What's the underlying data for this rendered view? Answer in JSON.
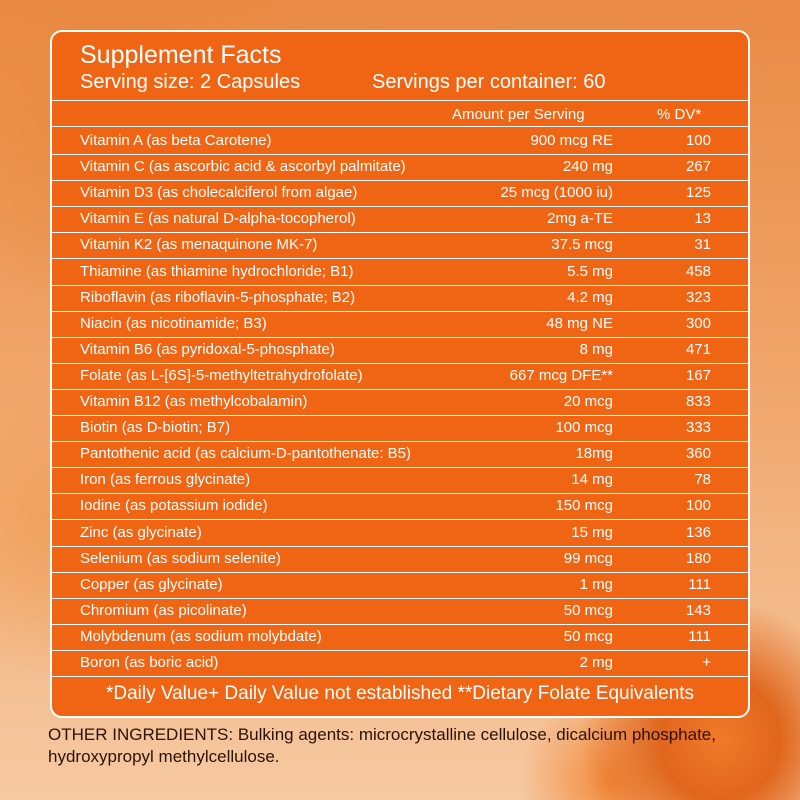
{
  "panel": {
    "title": "Supplement Facts",
    "serving_size": "Serving size: 2 Capsules",
    "servings_per_container": "Servings per container: 60",
    "header_amount": "Amount per Serving",
    "header_dv": "% DV*",
    "rows": [
      {
        "name": "Vitamin A (as beta Carotene)",
        "amount": "900 mcg RE",
        "dv": "100"
      },
      {
        "name": "Vitamin C (as ascorbic acid & ascorbyl palmitate)",
        "amount": "240 mg",
        "dv": "267"
      },
      {
        "name": "Vitamin D3 (as cholecalciferol from algae)",
        "amount": "25 mcg (1000 iu)",
        "dv": "125"
      },
      {
        "name": "Vitamin E (as natural D-alpha-tocopherol)",
        "amount": "2mg a-TE",
        "dv": "13"
      },
      {
        "name": "Vitamin K2 (as menaquinone MK-7)",
        "amount": "37.5 mcg",
        "dv": "31"
      },
      {
        "name": "Thiamine (as thiamine hydrochloride; B1)",
        "amount": "5.5 mg",
        "dv": "458"
      },
      {
        "name": "Riboflavin (as riboflavin-5-phosphate; B2)",
        "amount": "4.2 mg",
        "dv": "323"
      },
      {
        "name": "Niacin (as nicotinamide; B3)",
        "amount": "48 mg NE",
        "dv": "300"
      },
      {
        "name": "Vitamin B6 (as pyridoxal-5-phosphate)",
        "amount": "8 mg",
        "dv": "471"
      },
      {
        "name": "Folate (as L-[6S]-5-methyltetrahydrofolate)",
        "amount": "667 mcg DFE**",
        "dv": "167"
      },
      {
        "name": "Vitamin B12 (as methylcobalamin)",
        "amount": "20 mcg",
        "dv": "833"
      },
      {
        "name": "Biotin (as D-biotin; B7)",
        "amount": "100 mcg",
        "dv": "333"
      },
      {
        "name": "Pantothenic acid (as calcium-D-pantothenate: B5)",
        "amount": "18mg",
        "dv": "360"
      },
      {
        "name": "Iron (as ferrous glycinate)",
        "amount": "14 mg",
        "dv": "78"
      },
      {
        "name": "Iodine (as potassium iodide)",
        "amount": "150 mcg",
        "dv": "100"
      },
      {
        "name": "Zinc (as glycinate)",
        "amount": "15 mg",
        "dv": "136"
      },
      {
        "name": "Selenium (as sodium selenite)",
        "amount": "99 mcg",
        "dv": "180"
      },
      {
        "name": "Copper (as glycinate)",
        "amount": "1 mg",
        "dv": "111"
      },
      {
        "name": "Chromium (as picolinate)",
        "amount": "50 mcg",
        "dv": "143"
      },
      {
        "name": "Molybdenum (as sodium molybdate)",
        "amount": "50 mcg",
        "dv": "111"
      },
      {
        "name": "Boron (as boric acid)",
        "amount": "2 mg",
        "dv": "+"
      }
    ],
    "footnote": "*Daily Value+ Daily Value not established **Dietary Folate Equivalents"
  },
  "other_ingredients": "OTHER INGREDIENTS: Bulking agents: microcrystalline cellulose, dicalcium phosphate, hydroxypropyl methylcellulose.",
  "colors": {
    "panel_background": "#f06514",
    "panel_text": "#ffffff",
    "page_text": "#2b1205"
  }
}
